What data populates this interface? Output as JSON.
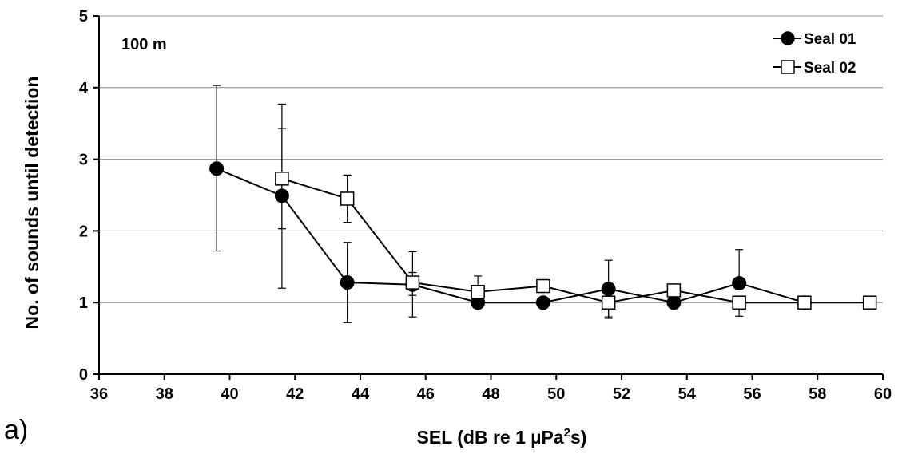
{
  "chart_data": {
    "type": "line",
    "panel_label": "a)",
    "annotation": "100 m",
    "xlabel_main": "SEL (dB re 1 µPa",
    "xlabel_sup": "2",
    "xlabel_tail": "s)",
    "ylabel": "No. of sounds until  detection",
    "xlim": [
      36,
      60
    ],
    "ylim": [
      0,
      5
    ],
    "xticks": [
      "36",
      "38",
      "40",
      "42",
      "44",
      "46",
      "48",
      "50",
      "52",
      "54",
      "56",
      "58",
      "60"
    ],
    "yticks": [
      "0",
      "1",
      "2",
      "3",
      "4",
      "5"
    ],
    "grid": "horizontal",
    "legend_position": "top-right",
    "series": [
      {
        "name": "Seal 01",
        "marker": "filled-circle",
        "color": "#000000",
        "x": [
          39.6,
          41.6,
          43.6,
          45.6,
          47.6,
          49.6,
          51.6,
          53.6,
          55.6,
          57.6
        ],
        "y": [
          2.87,
          2.49,
          1.28,
          1.25,
          1.0,
          1.0,
          1.19,
          1.0,
          1.27,
          1.0
        ],
        "err_low": [
          1.72,
          1.2,
          0.72,
          1.1,
          null,
          null,
          0.8,
          null,
          null,
          null
        ],
        "err_high": [
          4.03,
          3.43,
          1.84,
          1.42,
          null,
          null,
          1.59,
          null,
          1.74,
          null
        ]
      },
      {
        "name": "Seal 02",
        "marker": "open-square",
        "color": "#000000",
        "x": [
          41.6,
          43.6,
          45.6,
          47.6,
          49.6,
          51.6,
          53.6,
          55.6,
          57.6,
          59.6
        ],
        "y": [
          2.73,
          2.45,
          1.28,
          1.15,
          1.23,
          1.0,
          1.17,
          1.0,
          1.0,
          1.0
        ],
        "err_low": [
          2.03,
          2.12,
          0.8,
          null,
          null,
          0.78,
          null,
          0.81,
          null,
          null
        ],
        "err_high": [
          3.77,
          2.78,
          1.71,
          1.37,
          null,
          null,
          null,
          null,
          null,
          null
        ]
      }
    ]
  }
}
